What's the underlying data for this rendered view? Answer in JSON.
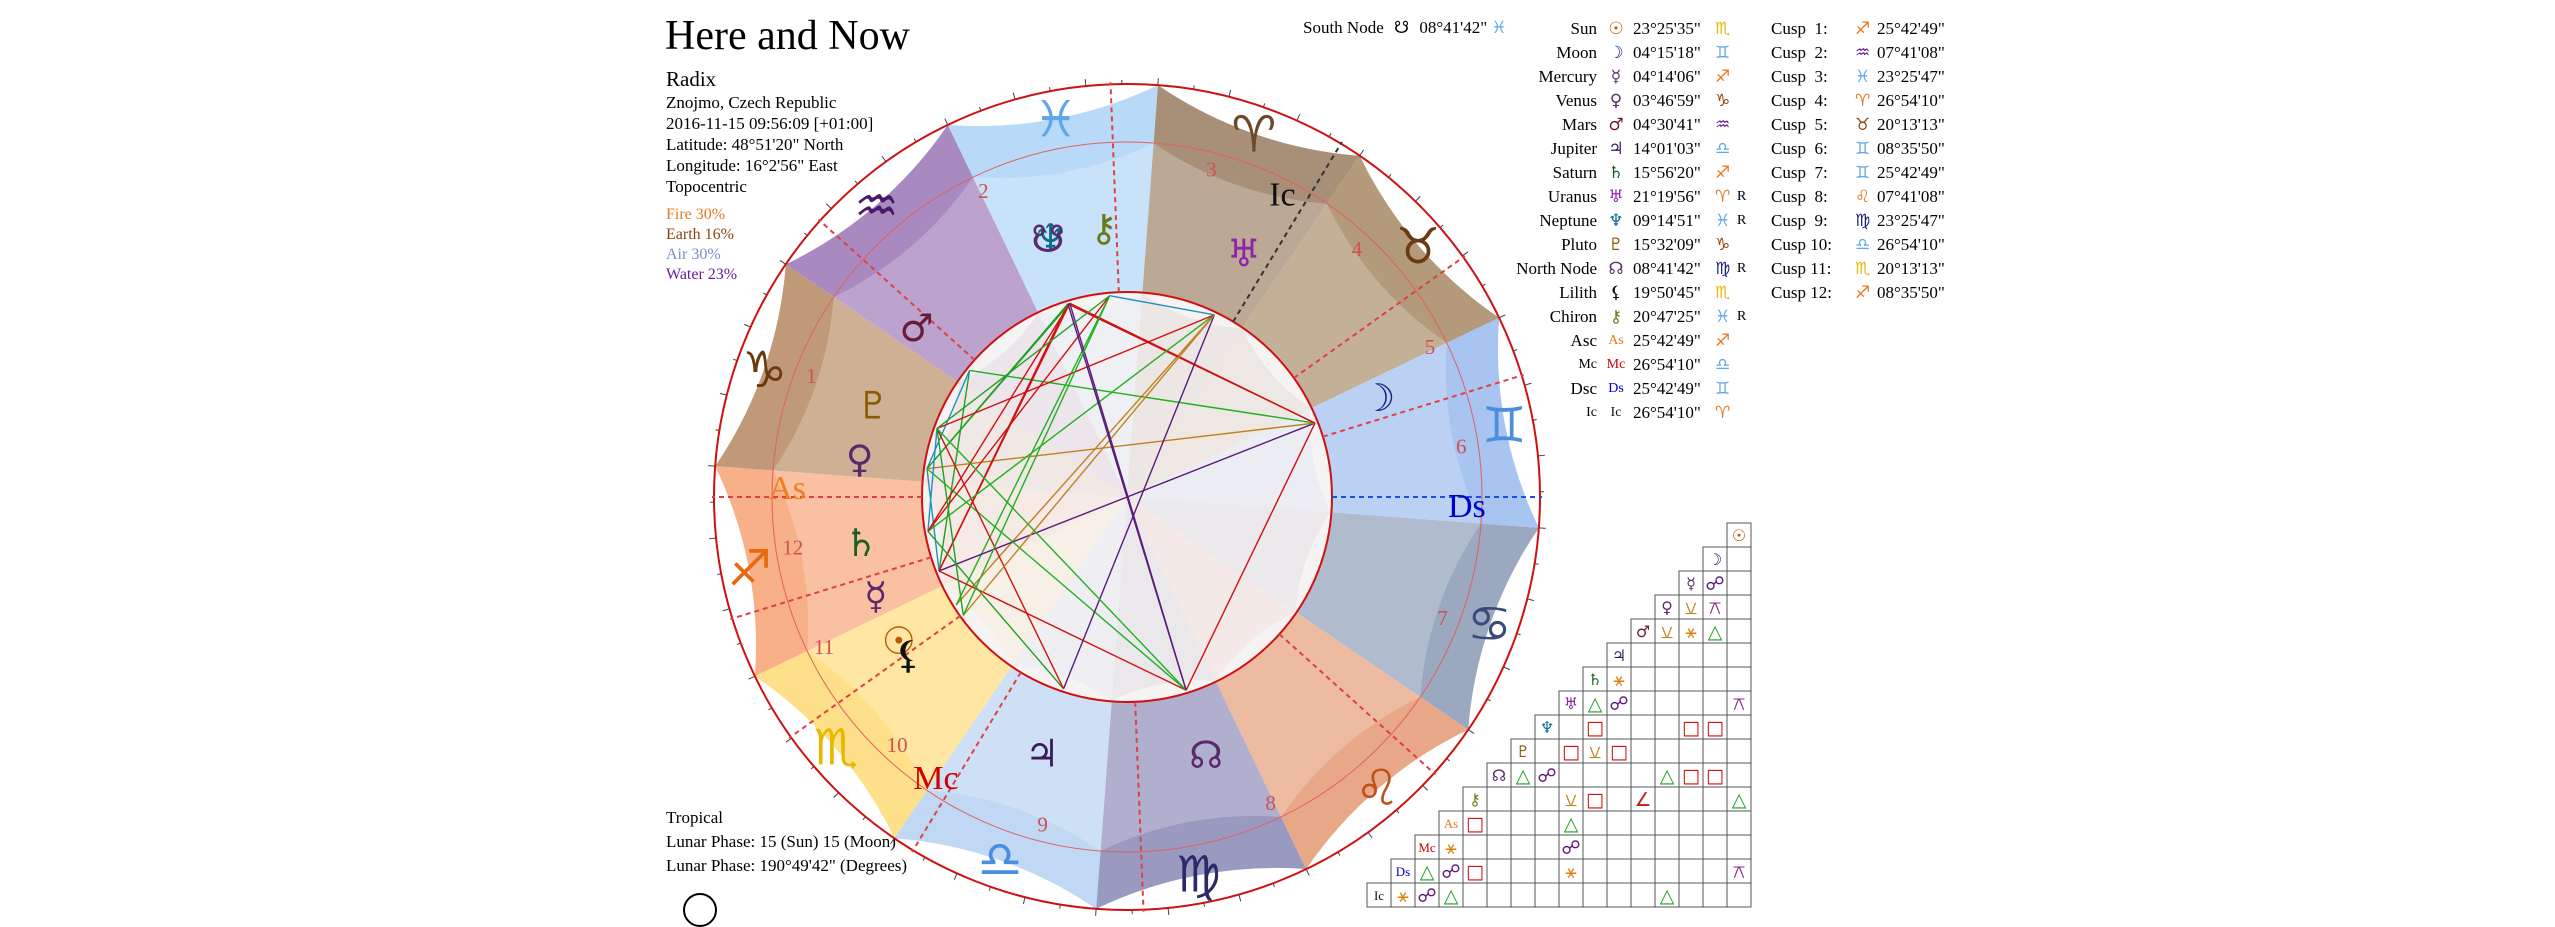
{
  "title": "Here and Now",
  "chart_type_label": "Radix",
  "location": "Znojmo, Czech Republic",
  "datetime": "2016-11-15 09:56:09 [+01:00]",
  "latitude": "Latitude: 48°51'20\" North",
  "longitude": "Longitude: 16°2'56\" East",
  "house_system": "Topocentric",
  "elements": [
    {
      "label": "Fire 30%",
      "color": "#e87722"
    },
    {
      "label": "Earth 16%",
      "color": "#8b4513"
    },
    {
      "label": "Air 30%",
      "color": "#7a8ccc"
    },
    {
      "label": "Water 23%",
      "color": "#6a1b9a"
    }
  ],
  "footer": {
    "zodiac": "Tropical",
    "lunar_phase_days": "Lunar Phase: 15 (Sun) 15 (Moon)",
    "lunar_phase_degrees": "Lunar Phase: 190°49'42\" (Degrees)"
  },
  "south_node": {
    "label": "South Node",
    "glyph": "☋",
    "degree": "08°41'42\"",
    "sign": "♓",
    "sign_color": "#5fa8e8"
  },
  "chart_data": {
    "type": "table",
    "planets": [
      {
        "name": "Sun",
        "glyph": "☉",
        "degree": "23°25'35\"",
        "sign": "♏",
        "retro": "",
        "glyph_color": "#c05a00",
        "sign_color": "#e8b800"
      },
      {
        "name": "Moon",
        "glyph": "☽",
        "degree": "04°15'18\"",
        "sign": "♊",
        "retro": "",
        "glyph_color": "#1a237e",
        "sign_color": "#5fa8e8"
      },
      {
        "name": "Mercury",
        "glyph": "☿",
        "degree": "04°14'06\"",
        "sign": "♐",
        "retro": "",
        "glyph_color": "#5a2a6a",
        "sign_color": "#e87722"
      },
      {
        "name": "Venus",
        "glyph": "♀",
        "degree": "03°46'59\"",
        "sign": "♑",
        "retro": "",
        "glyph_color": "#5a2a6a",
        "sign_color": "#8b4513"
      },
      {
        "name": "Mars",
        "glyph": "♂",
        "degree": "04°30'41\"",
        "sign": "♒",
        "retro": "",
        "glyph_color": "#6a1b3a",
        "sign_color": "#6a1b9a"
      },
      {
        "name": "Jupiter",
        "glyph": "♃",
        "degree": "14°01'03\"",
        "sign": "♎",
        "retro": "",
        "glyph_color": "#3a1a5a",
        "sign_color": "#5fa8e8"
      },
      {
        "name": "Saturn",
        "glyph": "♄",
        "degree": "15°56'20\"",
        "sign": "♐",
        "retro": "",
        "glyph_color": "#1b5e20",
        "sign_color": "#e87722"
      },
      {
        "name": "Uranus",
        "glyph": "♅",
        "degree": "21°19'56\"",
        "sign": "♈",
        "retro": "R",
        "glyph_color": "#8e24aa",
        "sign_color": "#e87722"
      },
      {
        "name": "Neptune",
        "glyph": "♆",
        "degree": "09°14'51\"",
        "sign": "♓",
        "retro": "R",
        "glyph_color": "#0b6a8a",
        "sign_color": "#5fa8e8"
      },
      {
        "name": "Pluto",
        "glyph": "♇",
        "degree": "15°32'09\"",
        "sign": "♑",
        "retro": "",
        "glyph_color": "#8a5a00",
        "sign_color": "#8b4513"
      },
      {
        "name": "North Node",
        "glyph": "☊",
        "degree": "08°41'42\"",
        "sign": "♍",
        "retro": "R",
        "glyph_color": "#5a2a6a",
        "sign_color": "#1a237e"
      },
      {
        "name": "Lilith",
        "glyph": "⚸",
        "degree": "19°50'45\"",
        "sign": "♏",
        "retro": "",
        "glyph_color": "#111111",
        "sign_color": "#e8b800"
      },
      {
        "name": "Chiron",
        "glyph": "⚷",
        "degree": "20°47'25\"",
        "sign": "♓",
        "retro": "R",
        "glyph_color": "#6a7a1a",
        "sign_color": "#5fa8e8"
      },
      {
        "name": "Asc",
        "glyph": "As",
        "degree": "25°42'49\"",
        "sign": "♐",
        "retro": "",
        "glyph_color": "#e87722",
        "sign_color": "#e87722"
      },
      {
        "name": "Mc",
        "glyph": "Mc",
        "degree": "26°54'10\"",
        "sign": "♎",
        "retro": "",
        "glyph_color": "#d00000",
        "sign_color": "#5fa8e8"
      },
      {
        "name": "Dsc",
        "glyph": "Ds",
        "degree": "25°42'49\"",
        "sign": "♊",
        "retro": "",
        "glyph_color": "#0000cc",
        "sign_color": "#5fa8e8"
      },
      {
        "name": "Ic",
        "glyph": "Ic",
        "degree": "26°54'10\"",
        "sign": "♈",
        "retro": "",
        "glyph_color": "#111111",
        "sign_color": "#e87722"
      }
    ],
    "cusps": [
      {
        "name": "Cusp  1:",
        "sign": "♐",
        "degree": "25°42'49\"",
        "sign_color": "#e87722"
      },
      {
        "name": "Cusp  2:",
        "sign": "♒",
        "degree": "07°41'08\"",
        "sign_color": "#6a1b9a"
      },
      {
        "name": "Cusp  3:",
        "sign": "♓",
        "degree": "23°25'47\"",
        "sign_color": "#5fa8e8"
      },
      {
        "name": "Cusp  4:",
        "sign": "♈",
        "degree": "26°54'10\"",
        "sign_color": "#e87722"
      },
      {
        "name": "Cusp  5:",
        "sign": "♉",
        "degree": "20°13'13\"",
        "sign_color": "#8b4513"
      },
      {
        "name": "Cusp  6:",
        "sign": "♊",
        "degree": "08°35'50\"",
        "sign_color": "#5fa8e8"
      },
      {
        "name": "Cusp  7:",
        "sign": "♊",
        "degree": "25°42'49\"",
        "sign_color": "#5fa8e8"
      },
      {
        "name": "Cusp  8:",
        "sign": "♌",
        "degree": "07°41'08\"",
        "sign_color": "#e87722"
      },
      {
        "name": "Cusp  9:",
        "sign": "♍",
        "degree": "23°25'47\"",
        "sign_color": "#1a237e"
      },
      {
        "name": "Cusp 10:",
        "sign": "♎",
        "degree": "26°54'10\"",
        "sign_color": "#5fa8e8"
      },
      {
        "name": "Cusp 11:",
        "sign": "♏",
        "degree": "20°13'13\"",
        "sign_color": "#e8b800"
      },
      {
        "name": "Cusp 12:",
        "sign": "♐",
        "degree": "08°35'50\"",
        "sign_color": "#e87722"
      }
    ]
  },
  "wheel": {
    "signs": [
      {
        "glyph": "♈",
        "color": "#6b4a2a"
      },
      {
        "glyph": "♉",
        "color": "#6b3a10"
      },
      {
        "glyph": "♊",
        "color": "#4a8ee0"
      },
      {
        "glyph": "♋",
        "color": "#3a4a7a"
      },
      {
        "glyph": "♌",
        "color": "#c0501a"
      },
      {
        "glyph": "♍",
        "color": "#2a2a6a"
      },
      {
        "glyph": "♎",
        "color": "#4a8ee0"
      },
      {
        "glyph": "♏",
        "color": "#e8b800"
      },
      {
        "glyph": "♐",
        "color": "#e86a10"
      },
      {
        "glyph": "♑",
        "color": "#6b3a10"
      },
      {
        "glyph": "♒",
        "color": "#4a1a6a"
      },
      {
        "glyph": "♓",
        "color": "#5fa8e8"
      }
    ],
    "sign_colors": [
      "#a89078",
      "#b29a7a",
      "#a8c4f0",
      "#9aa8c0",
      "#e8a888",
      "#9a9ac0",
      "#c0d8f4",
      "#ffe08a",
      "#f8b088",
      "#c09a78",
      "#a88ac0",
      "#b8daf8"
    ],
    "house_numbers": [
      "1",
      "2",
      "3",
      "4",
      "5",
      "6",
      "7",
      "8",
      "9",
      "10",
      "11",
      "12"
    ],
    "angle_labels": {
      "asc": "As",
      "mc": "Mc",
      "dsc": "Ds",
      "ic": "Ic"
    },
    "asc_longitude": 265.7136,
    "cusp_longitudes": [
      265.7136,
      307.6856,
      353.4297,
      26.9028,
      50.2203,
      68.5972,
      85.7136,
      127.6856,
      173.4297,
      206.9028,
      230.2203,
      248.5972
    ],
    "planet_positions": [
      {
        "glyph": "☉",
        "lon": 233.43,
        "color": "#c05a00"
      },
      {
        "glyph": "☽",
        "lon": 64.25,
        "color": "#1a237e"
      },
      {
        "glyph": "☿",
        "lon": 244.24,
        "color": "#5a2a6a"
      },
      {
        "glyph": "♀",
        "lon": 273.78,
        "color": "#5a2a6a"
      },
      {
        "glyph": "♂",
        "lon": 304.51,
        "color": "#6a1b3a"
      },
      {
        "glyph": "♃",
        "lon": 194.02,
        "color": "#3a1a5a"
      },
      {
        "glyph": "♄",
        "lon": 255.94,
        "color": "#1b5e20"
      },
      {
        "glyph": "♅",
        "lon": 21.33,
        "color": "#8e24aa"
      },
      {
        "glyph": "♆",
        "lon": 339.25,
        "color": "#0b6a8a"
      },
      {
        "glyph": "♇",
        "lon": 285.54,
        "color": "#8a5a00"
      },
      {
        "glyph": "☊",
        "lon": 158.7,
        "color": "#5a2a6a"
      },
      {
        "glyph": "⚸",
        "lon": 229.85,
        "color": "#111111"
      },
      {
        "glyph": "⚷",
        "lon": 350.79,
        "color": "#6a7a1a"
      },
      {
        "glyph": "☋",
        "lon": 338.7,
        "color": "#5a2a6a"
      }
    ]
  },
  "aspect_grid": {
    "row_labels": [
      "☉",
      "☽",
      "☿",
      "♀",
      "♂",
      "♃",
      "♄",
      "♅",
      "♆",
      "♇",
      "☊",
      "⚷",
      "As",
      "Mc",
      "Ds",
      "Ic"
    ],
    "row_colors": [
      "#c05a00",
      "#1a237e",
      "#5a2a6a",
      "#5a2a6a",
      "#6a1b3a",
      "#3a1a5a",
      "#1b5e20",
      "#8e24aa",
      "#0b6a8a",
      "#8a5a00",
      "#5a2a6a",
      "#6a7a1a",
      "#e87722",
      "#d00000",
      "#0000cc",
      "#111111"
    ]
  }
}
